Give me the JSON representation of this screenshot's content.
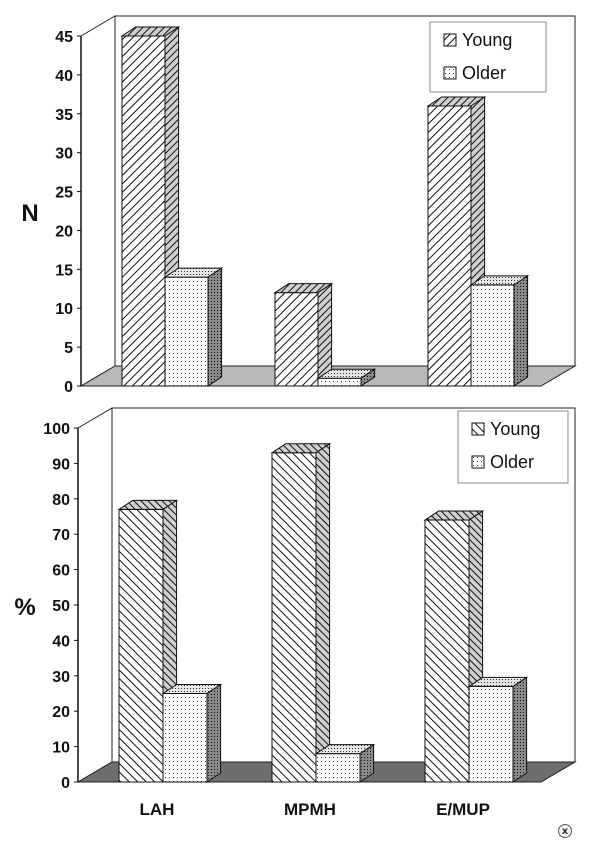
{
  "chart_data": [
    {
      "type": "bar",
      "categories": [
        "LAH",
        "MPMH",
        "E/MUP"
      ],
      "series": [
        {
          "name": "Young",
          "values": [
            45,
            12,
            36
          ]
        },
        {
          "name": "Older",
          "values": [
            14,
            1,
            13
          ]
        }
      ],
      "title": "",
      "xlabel": "",
      "ylabel": "N",
      "ylim": [
        0,
        45
      ],
      "yticks": [
        "0",
        "5",
        "10",
        "15",
        "20",
        "25",
        "30",
        "35",
        "40",
        "45"
      ],
      "legend": "top-right",
      "grid": false
    },
    {
      "type": "bar",
      "categories": [
        "LAH",
        "MPMH",
        "E/MUP"
      ],
      "series": [
        {
          "name": "Young",
          "values": [
            77,
            93,
            74
          ]
        },
        {
          "name": "Older",
          "values": [
            25,
            8,
            27
          ]
        }
      ],
      "title": "",
      "xlabel": "",
      "ylabel": "%",
      "ylim": [
        0,
        100
      ],
      "yticks": [
        "0",
        "10",
        "20",
        "30",
        "40",
        "50",
        "60",
        "70",
        "80",
        "90",
        "100"
      ],
      "legend": "top-right",
      "grid": false
    }
  ],
  "close_icon_label": "x"
}
